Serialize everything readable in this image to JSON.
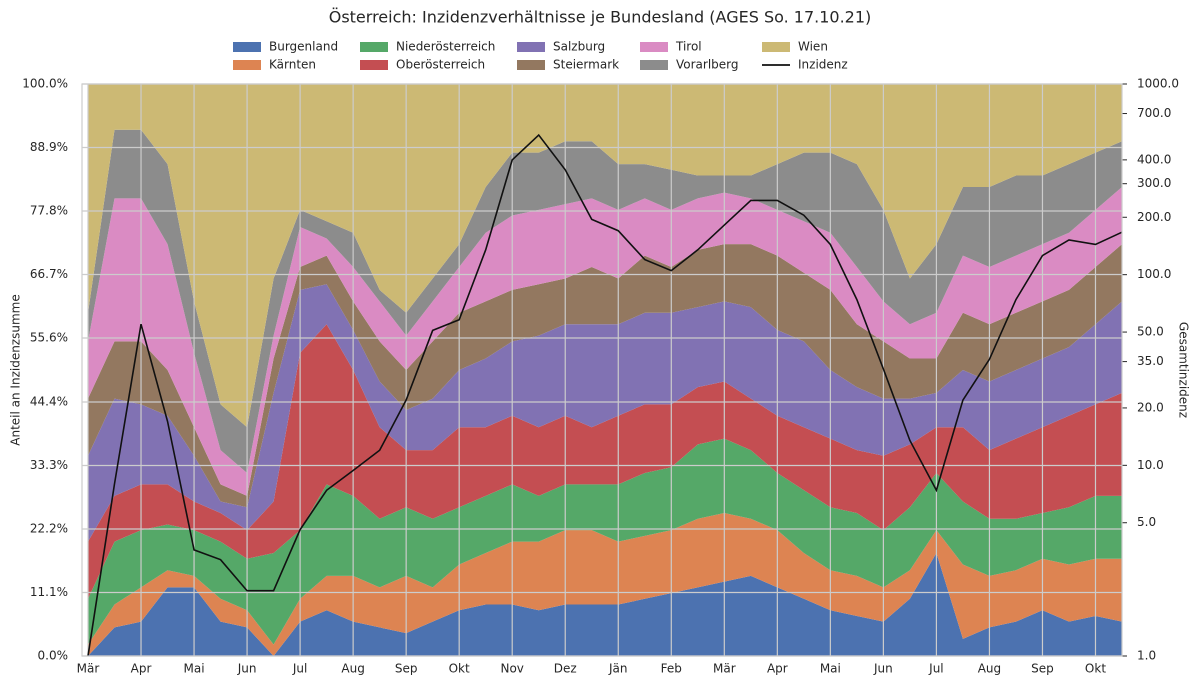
{
  "chart_data": {
    "type": "stackedarea",
    "title": "Österreich: Inzidenzverhältnisse je Bundesland (AGES So. 17.10.21)",
    "y_label": "Anteil an Inzidenzsumme",
    "y2_label": "Gesamtinzidenz",
    "categories": [
      "Mär",
      null,
      "Apr",
      null,
      "Mai",
      null,
      "Jun",
      null,
      "Jul",
      null,
      "Aug",
      null,
      "Sep",
      null,
      "Okt",
      null,
      "Nov",
      null,
      "Dez",
      null,
      "Jän",
      null,
      "Feb",
      null,
      "Mär",
      null,
      "Apr",
      null,
      "Mai",
      null,
      "Jun",
      null,
      "Jul",
      null,
      "Aug",
      null,
      "Sep",
      null,
      "Okt",
      null
    ],
    "ylim": [
      0,
      100
    ],
    "yticks": [
      {
        "value": 0,
        "label": "0.0%"
      },
      {
        "value": 11.1,
        "label": "11.1%"
      },
      {
        "value": 22.2,
        "label": "22.2%"
      },
      {
        "value": 33.3,
        "label": "33.3%"
      },
      {
        "value": 44.4,
        "label": "44.4%"
      },
      {
        "value": 55.6,
        "label": "55.6%"
      },
      {
        "value": 66.7,
        "label": "66.7%"
      },
      {
        "value": 77.8,
        "label": "77.8%"
      },
      {
        "value": 88.9,
        "label": "88.9%"
      },
      {
        "value": 100,
        "label": "100.0%"
      }
    ],
    "y2lim": [
      1,
      1000
    ],
    "y2scale": "log",
    "y2ticks": [
      {
        "value": 1,
        "label": "1.0"
      },
      {
        "value": 5,
        "label": "5.0"
      },
      {
        "value": 10,
        "label": "10.0"
      },
      {
        "value": 20,
        "label": "20.0"
      },
      {
        "value": 35,
        "label": "35.0"
      },
      {
        "value": 50,
        "label": "50.0"
      },
      {
        "value": 100,
        "label": "100.0"
      },
      {
        "value": 200,
        "label": "200.0"
      },
      {
        "value": 300,
        "label": "300.0"
      },
      {
        "value": 400,
        "label": "400.0"
      },
      {
        "value": 700,
        "label": "700.0"
      },
      {
        "value": 1000,
        "label": "1000.0"
      }
    ],
    "grid": true,
    "legend": "top",
    "series": [
      {
        "name": "Burgenland",
        "color": "#4c72b0",
        "values": [
          0,
          5,
          6,
          12,
          12,
          6,
          5,
          0,
          6,
          8,
          6,
          5,
          4,
          6,
          8,
          9,
          9,
          8,
          9,
          9,
          9,
          10,
          11,
          12,
          13,
          14,
          12,
          10,
          8,
          7,
          6,
          10,
          18,
          3,
          5,
          6,
          8,
          6,
          7,
          6
        ]
      },
      {
        "name": "Kärnten",
        "color": "#dd8452",
        "values": [
          2,
          4,
          6,
          3,
          2,
          4,
          3,
          2,
          4,
          6,
          8,
          7,
          10,
          6,
          8,
          9,
          11,
          12,
          13,
          13,
          11,
          11,
          11,
          12,
          12,
          10,
          10,
          8,
          7,
          7,
          6,
          5,
          4,
          13,
          9,
          9,
          9,
          10,
          10,
          11
        ]
      },
      {
        "name": "Niederösterreich",
        "color": "#55a868",
        "values": [
          8,
          11,
          10,
          8,
          8,
          10,
          9,
          16,
          12,
          16,
          14,
          12,
          12,
          12,
          10,
          10,
          10,
          8,
          8,
          8,
          10,
          11,
          11,
          13,
          13,
          12,
          10,
          11,
          11,
          11,
          10,
          11,
          10,
          11,
          10,
          9,
          8,
          10,
          11,
          11
        ]
      },
      {
        "name": "Oberösterreich",
        "color": "#c44e52",
        "values": [
          10,
          8,
          8,
          7,
          5,
          5,
          5,
          9,
          31,
          28,
          22,
          16,
          10,
          12,
          14,
          12,
          12,
          12,
          12,
          10,
          12,
          12,
          11,
          10,
          10,
          9,
          10,
          11,
          12,
          11,
          13,
          11,
          8,
          13,
          12,
          14,
          15,
          16,
          16,
          18
        ]
      },
      {
        "name": "Salzburg",
        "color": "#8172b3",
        "values": [
          15,
          17,
          14,
          12,
          8,
          2,
          4,
          19,
          11,
          7,
          7,
          8,
          7,
          9,
          10,
          12,
          13,
          16,
          16,
          18,
          16,
          16,
          16,
          14,
          14,
          16,
          15,
          15,
          12,
          11,
          10,
          8,
          6,
          10,
          12,
          12,
          12,
          12,
          14,
          16
        ]
      },
      {
        "name": "Steiermark",
        "color": "#937860",
        "values": [
          10,
          10,
          11,
          8,
          5,
          3,
          2,
          6,
          4,
          5,
          5,
          7,
          7,
          10,
          10,
          10,
          9,
          9,
          8,
          10,
          8,
          10,
          8,
          10,
          10,
          11,
          13,
          12,
          14,
          11,
          10,
          7,
          6,
          10,
          10,
          10,
          10,
          10,
          10,
          10
        ]
      },
      {
        "name": "Tirol",
        "color": "#da8bc3",
        "values": [
          10,
          25,
          25,
          22,
          13,
          6,
          4,
          4,
          7,
          3,
          6,
          7,
          6,
          7,
          8,
          12,
          13,
          13,
          13,
          12,
          12,
          10,
          10,
          9,
          9,
          8,
          8,
          9,
          10,
          10,
          7,
          6,
          8,
          10,
          10,
          10,
          10,
          10,
          10,
          10
        ]
      },
      {
        "name": "Vorarlberg",
        "color": "#8c8c8c",
        "values": [
          5,
          12,
          12,
          14,
          9,
          8,
          8,
          10,
          3,
          3,
          6,
          2,
          4,
          4,
          4,
          8,
          11,
          10,
          11,
          10,
          8,
          6,
          7,
          4,
          3,
          4,
          8,
          12,
          14,
          18,
          16,
          8,
          12,
          12,
          14,
          14,
          12,
          12,
          10,
          8
        ]
      },
      {
        "name": "Wien",
        "color": "#ccb974",
        "values": [
          40,
          8,
          8,
          14,
          38,
          56,
          60,
          34,
          22,
          24,
          26,
          36,
          40,
          34,
          28,
          18,
          12,
          12,
          10,
          10,
          14,
          14,
          15,
          16,
          16,
          16,
          14,
          12,
          12,
          14,
          22,
          34,
          28,
          18,
          18,
          16,
          16,
          14,
          12,
          10
        ]
      },
      {
        "name": "Inzidenz",
        "color": "#111111",
        "axis": "y2",
        "kind": "line",
        "values": [
          1,
          8,
          55,
          17,
          3.6,
          3.2,
          2.2,
          2.2,
          4.6,
          7.4,
          9.4,
          12,
          22,
          51,
          58,
          135,
          400,
          540,
          355,
          195,
          170,
          120,
          105,
          135,
          182,
          245,
          245,
          205,
          144,
          74,
          32,
          13.5,
          7.4,
          22,
          36,
          74,
          126,
          152,
          144,
          167
        ]
      }
    ]
  }
}
